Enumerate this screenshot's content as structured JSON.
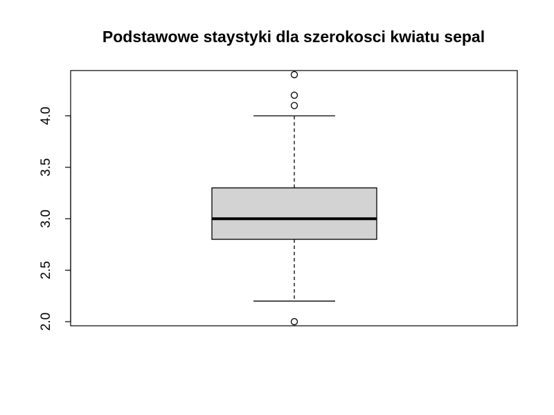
{
  "chart_data": {
    "type": "boxplot",
    "title": "Podstawowe staystyki dla szerokosci kwiatu sepal",
    "xlabel": "",
    "ylabel": "",
    "ylim": [
      1.96,
      4.44
    ],
    "y_ticks": [
      2.0,
      2.5,
      3.0,
      3.5,
      4.0
    ],
    "y_tick_labels": [
      "2.0",
      "2.5",
      "3.0",
      "3.5",
      "4.0"
    ],
    "grid": false,
    "box": {
      "q1": 2.8,
      "median": 3.0,
      "q3": 3.3,
      "whisker_low": 2.2,
      "whisker_high": 4.0,
      "outliers": [
        2.0,
        4.1,
        4.2,
        4.4
      ]
    },
    "colors": {
      "box_fill": "#d3d3d3",
      "stroke": "#000000"
    }
  }
}
